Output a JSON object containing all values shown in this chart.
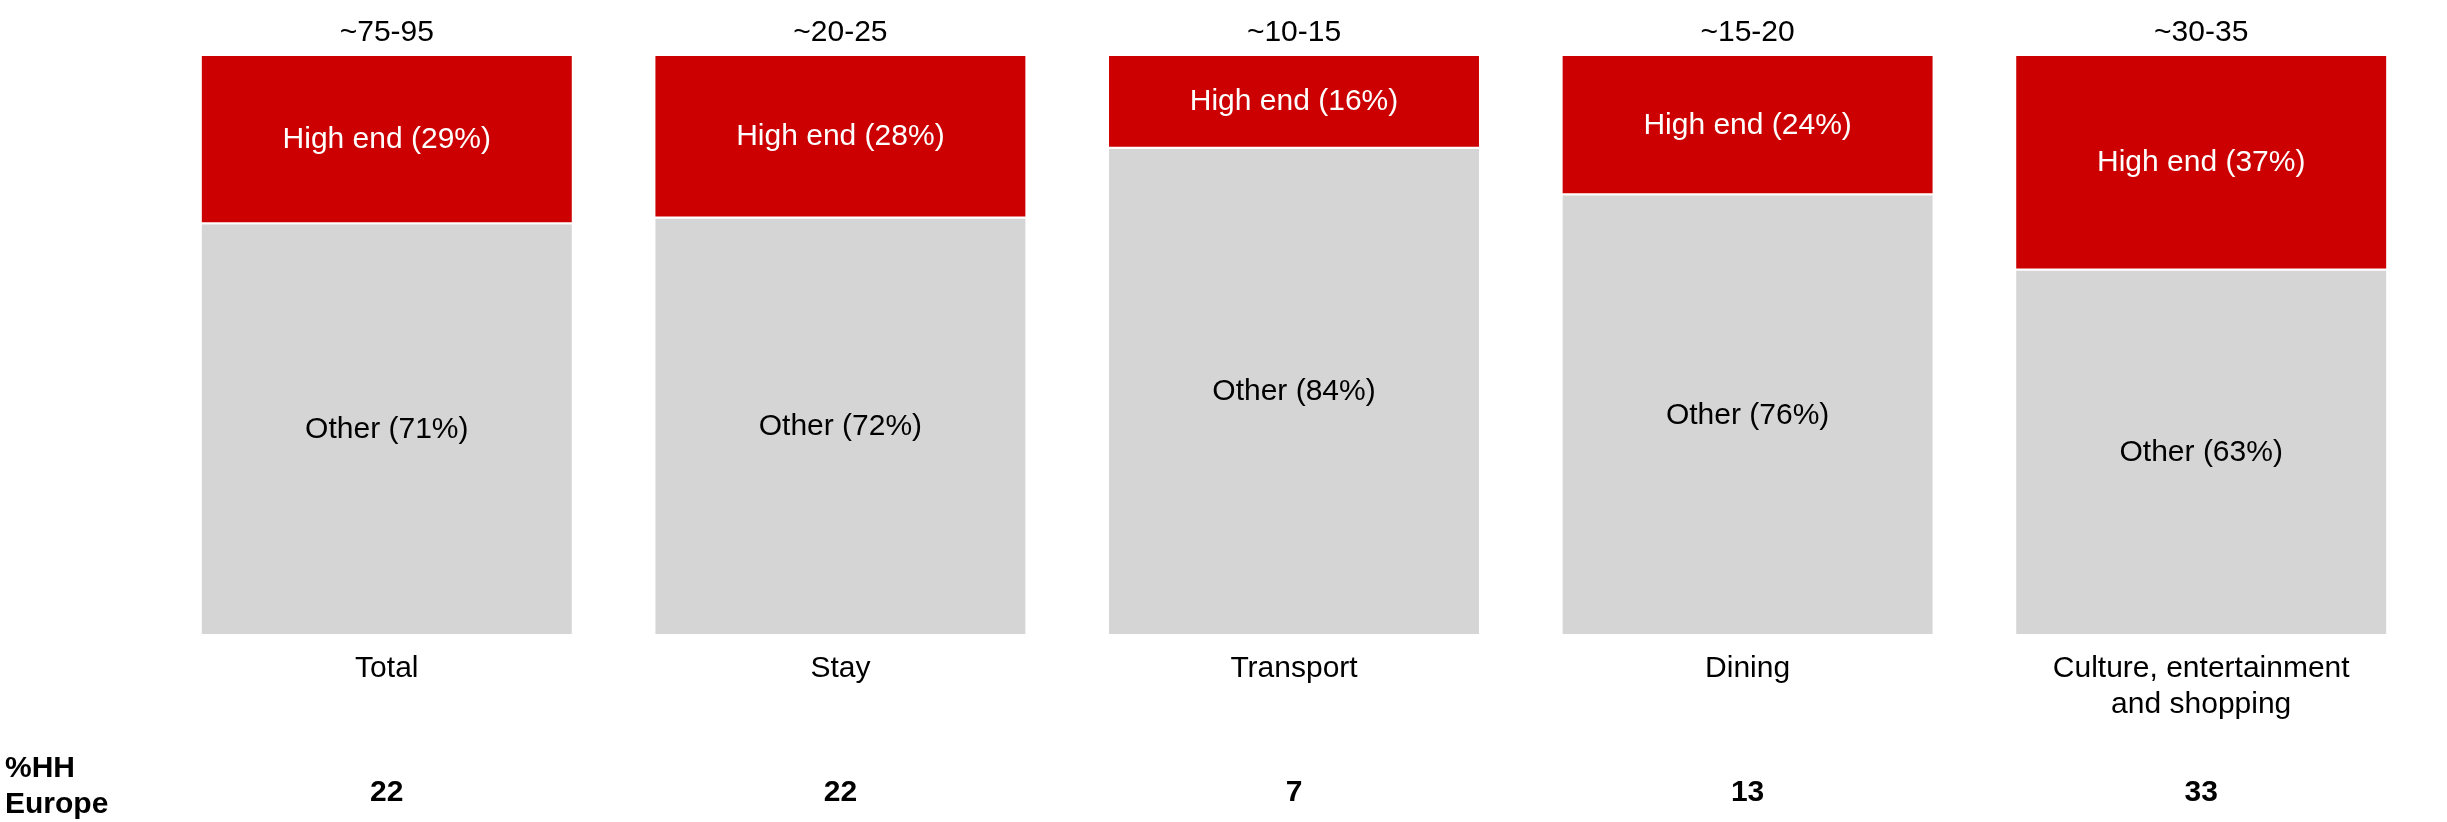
{
  "chart_data": {
    "type": "bar",
    "stacked": true,
    "legend": false,
    "categories": [
      "Total",
      "Stay",
      "Transport",
      "Dining",
      "Culture, entertainment and shopping"
    ],
    "series": [
      {
        "color": "#d5d5d5",
        "values": [
          71,
          72,
          84,
          76,
          63
        ],
        "value_labels": [
          "Other (71%)",
          "Other (72%)",
          "Other (84%)",
          "Other (76%)",
          "Other (63%)"
        ]
      },
      {
        "color": "#cc0000",
        "values": [
          29,
          28,
          16,
          24,
          37
        ],
        "value_labels": [
          "High end (29%)",
          "High end (28%)",
          "High end (16%)",
          "High end (24%)",
          "High end (37%)"
        ]
      }
    ],
    "totals": [
      "~75-95",
      "~20-25",
      "~10-15",
      "~15-20",
      "~30-35"
    ],
    "annotations": [
      "%HH Europe",
      "22",
      "22",
      "7",
      "13",
      "33"
    ]
  }
}
